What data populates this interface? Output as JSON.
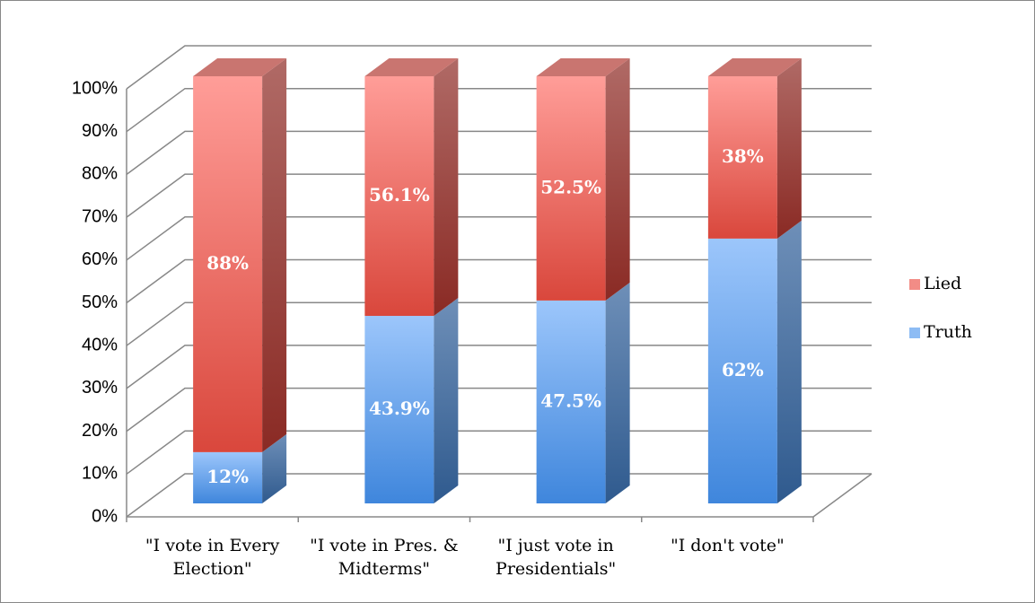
{
  "chart_data": {
    "type": "bar",
    "stacked": true,
    "categories": [
      "\"I vote in Every Election\"",
      "\"I vote in Pres. & Midterms\"",
      "\"I just vote in Presidentials\"",
      "\"I don't vote\""
    ],
    "series": [
      {
        "name": "Truth",
        "color": "#8dbcf4",
        "values": [
          12,
          43.9,
          47.5,
          62
        ],
        "value_labels": [
          "12%",
          "43.9%",
          "47.5%",
          "62%"
        ]
      },
      {
        "name": "Lied",
        "color": "#f28c86",
        "values": [
          88,
          56.1,
          52.5,
          38
        ],
        "value_labels": [
          "88%",
          "56.1%",
          "52.5%",
          "38%"
        ]
      }
    ],
    "ylim": [
      0,
      100
    ],
    "yticks": [
      {
        "value": 0,
        "label": "0%"
      },
      {
        "value": 10,
        "label": "10%"
      },
      {
        "value": 20,
        "label": "20%"
      },
      {
        "value": 30,
        "label": "30%"
      },
      {
        "value": 40,
        "label": "40%"
      },
      {
        "value": 50,
        "label": "50%"
      },
      {
        "value": 60,
        "label": "60%"
      },
      {
        "value": 70,
        "label": "70%"
      },
      {
        "value": 80,
        "label": "80%"
      },
      {
        "value": 90,
        "label": "90%"
      },
      {
        "value": 100,
        "label": "100%"
      }
    ],
    "grid": true,
    "legend": "right"
  }
}
